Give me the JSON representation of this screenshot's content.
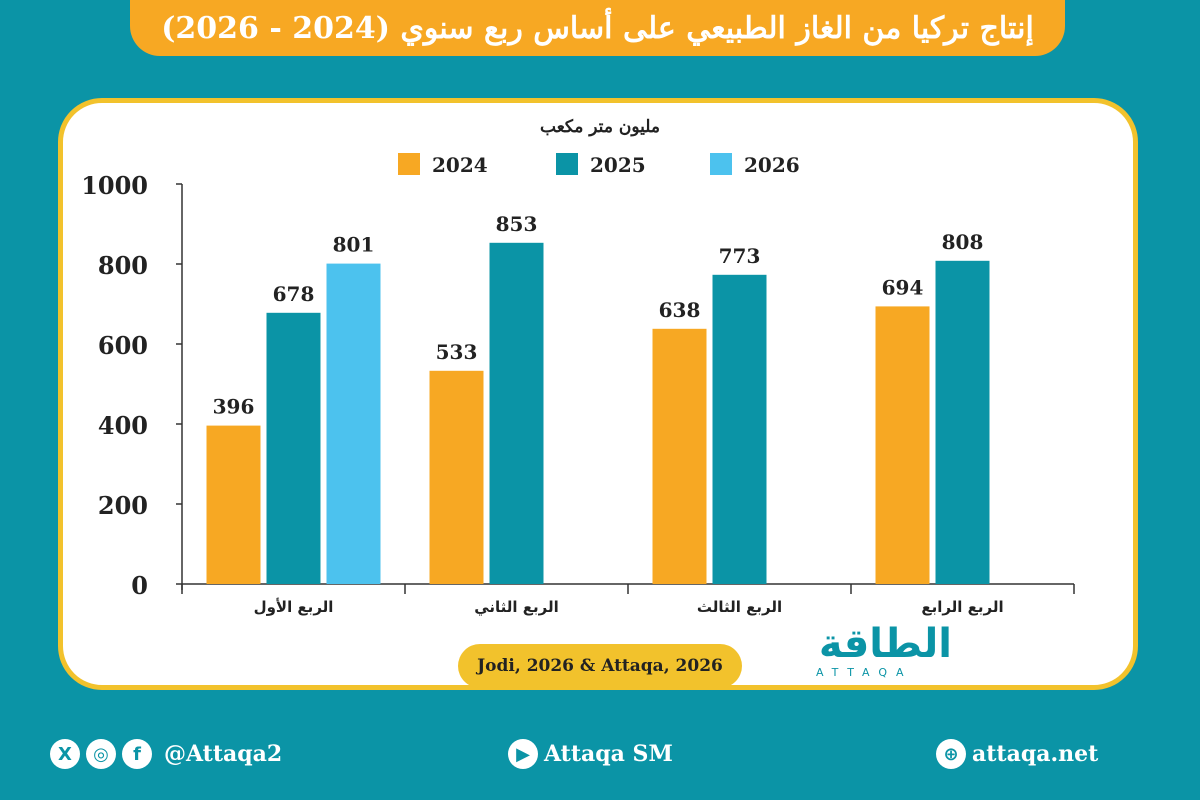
{
  "title": "إنتاج تركيا من الغاز الطبيعي على أساس ربع سنوي (2024 - 2026)",
  "source": "Jodi, 2026 & Attaqa, 2026",
  "logo": {
    "arabic": "الطاقة",
    "latin": "ATTAQA"
  },
  "footer": {
    "social_handle": "@Attaqa2",
    "youtube": "Attaqa SM",
    "website": "attaqa.net"
  },
  "colors": {
    "orange": "#f7a823",
    "teal": "#0b94a6",
    "lightblue": "#4cc2ee",
    "gold": "#f2c22c"
  },
  "chart_data": {
    "type": "bar",
    "ylabel": "مليون متر مكعب",
    "ylim": [
      0,
      1000
    ],
    "yticks": [
      0,
      200,
      400,
      600,
      800,
      1000
    ],
    "categories": [
      "الربع الأول",
      "الربع الثاني",
      "الربع الثالث",
      "الربع الرابع"
    ],
    "series": [
      {
        "name": "2024",
        "color": "#f7a823",
        "values": [
          396,
          533,
          638,
          694
        ]
      },
      {
        "name": "2025",
        "color": "#0b94a6",
        "values": [
          678,
          853,
          773,
          808
        ]
      },
      {
        "name": "2026",
        "color": "#4cc2ee",
        "values": [
          801,
          null,
          null,
          null
        ]
      }
    ],
    "legend_position": "top",
    "grid": false
  }
}
